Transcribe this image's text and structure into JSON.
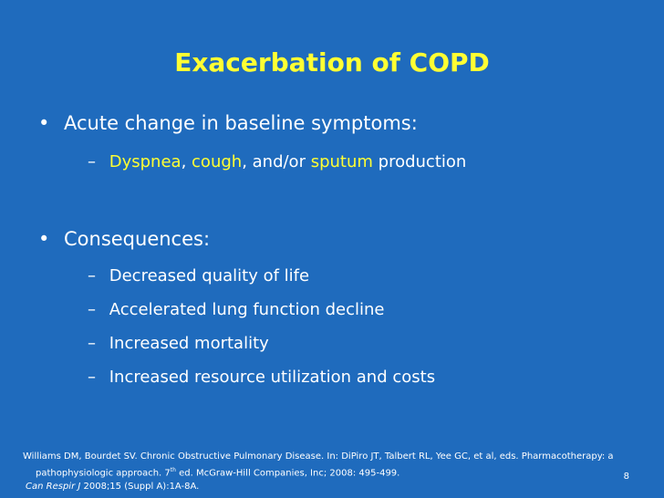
{
  "slide": {
    "title": "Exacerbation of COPD",
    "bullets": [
      {
        "text": "Acute change in baseline symptoms:",
        "sub": [
          {
            "parts": [
              "Dyspnea",
              ", ",
              "cough",
              ", and/or ",
              "sputum",
              " production"
            ]
          }
        ]
      },
      {
        "text": "Consequences:",
        "sub": [
          {
            "text": "Decreased quality of life"
          },
          {
            "text": "Accelerated lung function decline"
          },
          {
            "text": "Increased mortality"
          },
          {
            "text": "Increased resource utilization and costs"
          }
        ]
      }
    ],
    "bullet_glyph": "•",
    "dash_glyph": "–",
    "highlight_color": "#ffff33",
    "background_color": "#1f6bbd",
    "references": {
      "ref1_line1": "Williams DM, Bourdet SV. Chronic Obstructive Pulmonary Disease. In: DiPiro JT, Talbert RL, Yee GC, et al, eds. Pharmacotherapy: a",
      "ref1_line2_a": "pathophysiologic approach. 7",
      "ref1_line2_sup": "th",
      "ref1_line2_b": " ed. McGraw-Hill Companies, Inc; 2008: 495-499.",
      "ref2_italic": "Can Respir J",
      "ref2_rest": " 2008;15 (Suppl A):1A-8A."
    },
    "page_number": "8"
  }
}
